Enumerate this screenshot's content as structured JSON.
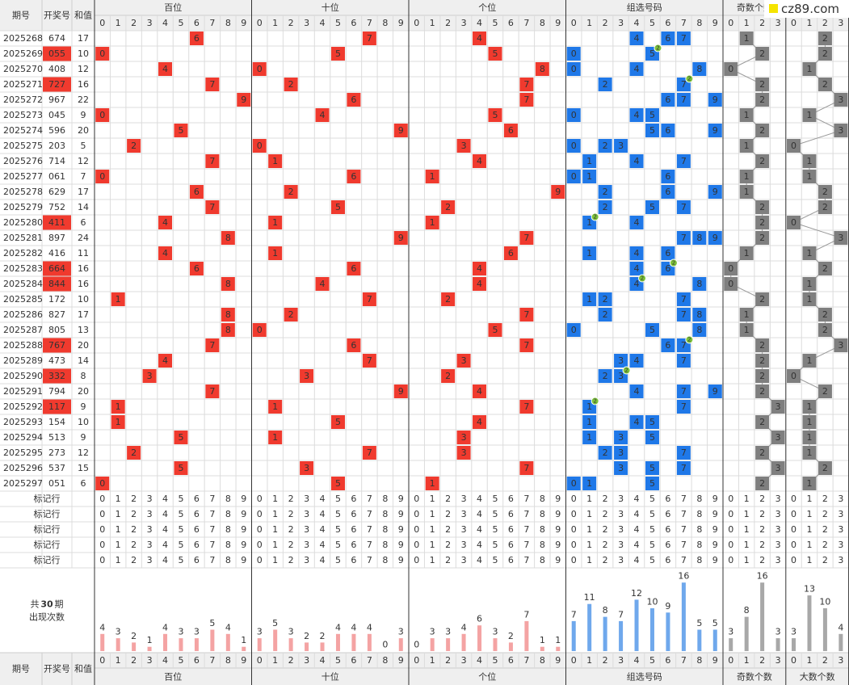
{
  "header": {
    "issue": "期号",
    "number": "开奖号",
    "sum": "和值"
  },
  "watermark": "cz89.com",
  "groups": [
    {
      "title": "百位",
      "digits": [
        0,
        1,
        2,
        3,
        4,
        5,
        6,
        7,
        8,
        9
      ],
      "counts": [
        4,
        3,
        2,
        1,
        4,
        3,
        3,
        5,
        4,
        1
      ]
    },
    {
      "title": "十位",
      "digits": [
        0,
        1,
        2,
        3,
        4,
        5,
        6,
        7,
        8,
        9
      ],
      "counts": [
        3,
        5,
        3,
        2,
        2,
        4,
        4,
        4,
        0,
        3
      ]
    },
    {
      "title": "个位",
      "digits": [
        0,
        1,
        2,
        3,
        4,
        5,
        6,
        7,
        8,
        9
      ],
      "counts": [
        0,
        3,
        3,
        4,
        6,
        3,
        2,
        7,
        1,
        1
      ]
    },
    {
      "title": "组选号码",
      "digits": [
        0,
        1,
        2,
        3,
        4,
        5,
        6,
        7,
        8,
        9
      ],
      "counts": [
        7,
        11,
        8,
        7,
        12,
        10,
        9,
        16,
        5,
        5
      ]
    },
    {
      "title": "奇数个数",
      "digits": [
        0,
        1,
        2,
        3
      ],
      "counts": [
        3,
        8,
        16,
        3
      ]
    },
    {
      "title": "大数个数",
      "digits": [
        0,
        1,
        2,
        3
      ],
      "counts": [
        3,
        13,
        10,
        4
      ]
    }
  ],
  "draws": [
    {
      "issue": 2025268,
      "number": "674",
      "sum": 17
    },
    {
      "issue": 2025269,
      "number": "055",
      "sum": 10
    },
    {
      "issue": 2025270,
      "number": "408",
      "sum": 12
    },
    {
      "issue": 2025271,
      "number": "727",
      "sum": 16
    },
    {
      "issue": 2025272,
      "number": "967",
      "sum": 22
    },
    {
      "issue": 2025273,
      "number": "045",
      "sum": 9
    },
    {
      "issue": 2025274,
      "number": "596",
      "sum": 20
    },
    {
      "issue": 2025275,
      "number": "203",
      "sum": 5
    },
    {
      "issue": 2025276,
      "number": "714",
      "sum": 12
    },
    {
      "issue": 2025277,
      "number": "061",
      "sum": 7
    },
    {
      "issue": 2025278,
      "number": "629",
      "sum": 17
    },
    {
      "issue": 2025279,
      "number": "752",
      "sum": 14
    },
    {
      "issue": 2025280,
      "number": "411",
      "sum": 6
    },
    {
      "issue": 2025281,
      "number": "897",
      "sum": 24
    },
    {
      "issue": 2025282,
      "number": "416",
      "sum": 11
    },
    {
      "issue": 2025283,
      "number": "664",
      "sum": 16
    },
    {
      "issue": 2025284,
      "number": "844",
      "sum": 16
    },
    {
      "issue": 2025285,
      "number": "172",
      "sum": 10
    },
    {
      "issue": 2025286,
      "number": "827",
      "sum": 17
    },
    {
      "issue": 2025287,
      "number": "805",
      "sum": 13
    },
    {
      "issue": 2025288,
      "number": "767",
      "sum": 20
    },
    {
      "issue": 2025289,
      "number": "473",
      "sum": 14
    },
    {
      "issue": 2025290,
      "number": "332",
      "sum": 8
    },
    {
      "issue": 2025291,
      "number": "794",
      "sum": 20
    },
    {
      "issue": 2025292,
      "number": "117",
      "sum": 9
    },
    {
      "issue": 2025293,
      "number": "154",
      "sum": 10
    },
    {
      "issue": 2025294,
      "number": "513",
      "sum": 9
    },
    {
      "issue": 2025295,
      "number": "273",
      "sum": 12
    },
    {
      "issue": 2025296,
      "number": "537",
      "sum": 15
    },
    {
      "issue": 2025297,
      "number": "051",
      "sum": 6
    }
  ],
  "mark_row_label": "标记行",
  "stats": {
    "total_prefix": "共",
    "periods": 30,
    "total_suffix": "期",
    "label": "出现次数"
  },
  "repeat_badge": 2
}
